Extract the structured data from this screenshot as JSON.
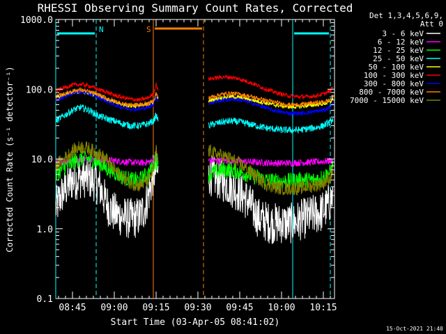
{
  "chart_data": {
    "type": "line",
    "title": "RHESSI Observing Summary Count Rates, Corrected",
    "xlabel": "Start Time (03-Apr-05 08:41:02)",
    "ylabel": "Corrected Count Rate (s⁻¹ detector⁻¹)",
    "yscale": "log",
    "ylim": [
      0.1,
      1000
    ],
    "xlim_minutes": [
      39,
      139
    ],
    "x_ticks": [
      {
        "label": "08:45",
        "minute": 45
      },
      {
        "label": "09:00",
        "minute": 60
      },
      {
        "label": "09:15",
        "minute": 75
      },
      {
        "label": "09:30",
        "minute": 90
      },
      {
        "label": "09:45",
        "minute": 105
      },
      {
        "label": "10:00",
        "minute": 120
      },
      {
        "label": "10:15",
        "minute": 135
      }
    ],
    "y_ticks": [
      {
        "label": "0.1",
        "value": 0.1
      },
      {
        "label": "1.0",
        "value": 1
      },
      {
        "label": "10.0",
        "value": 10
      },
      {
        "label": "100.0",
        "value": 100
      },
      {
        "label": "1000.0",
        "value": 1000
      }
    ],
    "legend_header": [
      "Det 1,3,4,5,6,9,",
      "Att 0"
    ],
    "legend_position": "right",
    "footer_date": "15-Oct-2021 21:40",
    "flags": [
      {
        "label": "N",
        "start": 39,
        "end": 53.5,
        "color": "#00ffff",
        "line_start": 39,
        "line_end": 53.5
      },
      {
        "label": "S",
        "start": 74,
        "end": 92,
        "color": "#ff8000",
        "line_start": 74,
        "line_end": 92
      },
      {
        "label": "",
        "start": 124,
        "end": 137.5,
        "color": "#00ffff",
        "line_start": 124,
        "line_end": 137.5
      }
    ],
    "series": [
      {
        "name": "3 - 6 keV",
        "color": "#ffffff",
        "noise": 0.3,
        "x": [
          39,
          41,
          43,
          45,
          47,
          49,
          51,
          53,
          55,
          57,
          59,
          61,
          63,
          65,
          67,
          69,
          71,
          73,
          74,
          75,
          75.8,
          93.8,
          96,
          98,
          100,
          102,
          104,
          106,
          108,
          110,
          112,
          114,
          116,
          118,
          120,
          122,
          124,
          126,
          128,
          130,
          132,
          134,
          136,
          137.5,
          138.5
        ],
        "y": [
          2,
          3,
          4,
          5,
          5.2,
          5.5,
          5.2,
          4.8,
          3.8,
          2.4,
          1.8,
          1.6,
          1.5,
          1.4,
          1.4,
          1.5,
          2,
          4,
          6,
          7,
          6,
          6,
          5.5,
          5,
          4.5,
          4,
          3.5,
          3,
          2.5,
          1.8,
          1.4,
          1.3,
          1.2,
          1.2,
          1.2,
          1.2,
          1.2,
          1.3,
          1.4,
          1.5,
          1.6,
          1.7,
          2,
          2.5,
          3
        ]
      },
      {
        "name": "6 - 12 keV",
        "color": "#ff00ff",
        "noise": 0.05,
        "x": [
          39,
          45,
          50,
          55,
          60,
          65,
          70,
          73,
          75,
          75.8,
          93.8,
          100,
          105,
          110,
          115,
          120,
          125,
          130,
          135,
          138.5
        ],
        "y": [
          9,
          9.5,
          10,
          9.8,
          9.5,
          9,
          8.8,
          9.2,
          10,
          9.5,
          9.5,
          9.5,
          9.3,
          9,
          8.8,
          8.7,
          8.8,
          9,
          9.2,
          9.5
        ]
      },
      {
        "name": "12 - 25 keV",
        "color": "#00ff00",
        "noise": 0.12,
        "x": [
          39,
          42,
          45,
          48,
          51,
          54,
          57,
          60,
          63,
          66,
          69,
          72,
          74,
          75,
          75.8,
          93.8,
          96,
          99,
          102,
          105,
          108,
          111,
          114,
          117,
          120,
          123,
          126,
          129,
          132,
          135,
          137.5,
          138.5
        ],
        "y": [
          6,
          7.5,
          9,
          10,
          10,
          9,
          7.5,
          6.5,
          5.5,
          5,
          5,
          6,
          8,
          10,
          8,
          6,
          6.5,
          7,
          7,
          6.5,
          6,
          5.5,
          5,
          4.8,
          4.8,
          4.8,
          5,
          5,
          5,
          5.5,
          6.5,
          8
        ]
      },
      {
        "name": "25 - 50 keV",
        "color": "#00ffff",
        "noise": 0.05,
        "x": [
          39,
          42,
          45,
          48,
          51,
          54,
          57,
          60,
          63,
          66,
          69,
          72,
          74,
          75,
          75.8,
          93.8,
          96,
          99,
          102,
          105,
          108,
          111,
          114,
          117,
          120,
          123,
          126,
          129,
          132,
          135,
          137.5,
          138.5
        ],
        "y": [
          35,
          42,
          50,
          55,
          50,
          42,
          38,
          35,
          32,
          30,
          30,
          32,
          35,
          42,
          36,
          30,
          32,
          34,
          35,
          34,
          32,
          30,
          28,
          27,
          26,
          26,
          26,
          27,
          28,
          30,
          34,
          38
        ]
      },
      {
        "name": "50 - 100 keV",
        "color": "#ffff00",
        "noise": 0.03,
        "x": [
          39,
          42,
          45,
          48,
          51,
          54,
          57,
          60,
          63,
          66,
          69,
          72,
          74,
          75,
          75.8,
          93.8,
          96,
          99,
          102,
          105,
          108,
          111,
          114,
          117,
          120,
          123,
          126,
          129,
          132,
          135,
          137.5,
          138.5
        ],
        "y": [
          75,
          82,
          90,
          92,
          88,
          82,
          72,
          65,
          60,
          58,
          58,
          60,
          65,
          80,
          70,
          68,
          72,
          76,
          78,
          76,
          72,
          68,
          64,
          60,
          58,
          56,
          56,
          58,
          60,
          62,
          66,
          75
        ]
      },
      {
        "name": "100 - 300 keV",
        "color": "#ff0000",
        "noise": 0.03,
        "x": [
          39,
          42,
          45,
          48,
          51,
          54,
          57,
          60,
          63,
          66,
          69,
          72,
          74,
          75,
          75.8,
          93.8,
          96,
          99,
          102,
          105,
          108,
          111,
          114,
          117,
          120,
          123,
          126,
          129,
          132,
          135,
          137.5,
          138.5
        ],
        "y": [
          95,
          105,
          115,
          118,
          112,
          100,
          92,
          82,
          76,
          72,
          70,
          75,
          85,
          118,
          95,
          140,
          145,
          150,
          148,
          140,
          128,
          115,
          102,
          92,
          85,
          80,
          78,
          78,
          80,
          85,
          95,
          110
        ]
      },
      {
        "name": "300 - 800 keV",
        "color": "#0000ff",
        "noise": 0.03,
        "x": [
          39,
          42,
          45,
          48,
          51,
          54,
          57,
          60,
          63,
          66,
          69,
          72,
          74,
          75,
          75.8,
          93.8,
          96,
          99,
          102,
          105,
          108,
          111,
          114,
          117,
          120,
          123,
          126,
          129,
          132,
          135,
          137.5,
          138.5
        ],
        "y": [
          70,
          78,
          88,
          92,
          86,
          78,
          68,
          60,
          55,
          52,
          52,
          55,
          60,
          80,
          68,
          62,
          66,
          70,
          72,
          70,
          66,
          60,
          55,
          50,
          47,
          45,
          45,
          46,
          48,
          50,
          55,
          62
        ]
      },
      {
        "name": "800 - 7000 keV",
        "color": "#ff8000",
        "noise": 0.03,
        "x": [
          39,
          42,
          45,
          48,
          51,
          54,
          57,
          60,
          63,
          66,
          69,
          72,
          74,
          75,
          75.8,
          93.8,
          96,
          99,
          102,
          105,
          108,
          111,
          114,
          117,
          120,
          123,
          126,
          129,
          132,
          135,
          137.5,
          138.5
        ],
        "y": [
          78,
          85,
          95,
          98,
          92,
          85,
          75,
          68,
          62,
          60,
          60,
          62,
          68,
          88,
          75,
          75,
          80,
          85,
          88,
          85,
          80,
          75,
          70,
          66,
          62,
          60,
          60,
          62,
          64,
          66,
          70,
          80
        ]
      },
      {
        "name": "7000 - 15000 keV",
        "color": "#808000",
        "noise": 0.1,
        "x": [
          39,
          42,
          45,
          48,
          51,
          54,
          57,
          60,
          63,
          66,
          69,
          72,
          74,
          75,
          75.8,
          93.8,
          96,
          99,
          102,
          105,
          108,
          111,
          114,
          117,
          120,
          123,
          126,
          129,
          132,
          135,
          137.5,
          138.5
        ],
        "y": [
          8,
          10,
          13,
          15,
          14,
          12,
          10,
          7,
          5.5,
          4.5,
          4.2,
          4.8,
          7,
          13,
          9,
          13,
          12,
          11,
          10,
          8.5,
          7,
          5.5,
          4.5,
          4,
          3.8,
          3.8,
          3.8,
          4,
          4.2,
          4.5,
          5.5,
          7
        ]
      }
    ]
  }
}
